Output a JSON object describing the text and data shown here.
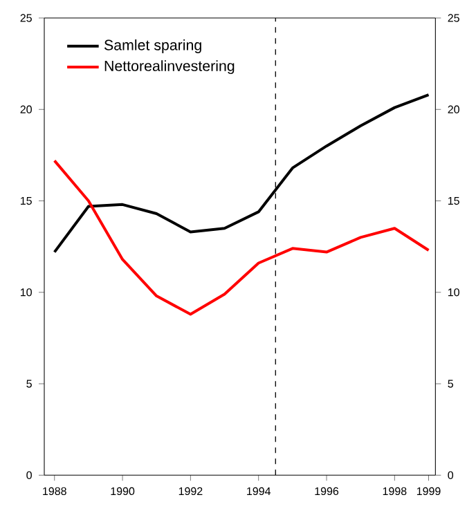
{
  "chart_data": {
    "type": "line",
    "x": [
      1988,
      1989,
      1990,
      1991,
      1992,
      1993,
      1994,
      1995,
      1996,
      1997,
      1998,
      1999
    ],
    "series": [
      {
        "name": "Samlet sparing",
        "color": "#000000",
        "values": [
          12.2,
          14.7,
          14.8,
          14.3,
          13.3,
          13.5,
          14.4,
          16.8,
          18.0,
          19.1,
          20.1,
          20.8
        ]
      },
      {
        "name": "Nettorealinvestering",
        "color": "#ff0000",
        "values": [
          17.2,
          15.0,
          11.8,
          9.8,
          8.8,
          9.9,
          11.6,
          12.4,
          12.2,
          13.0,
          13.5,
          12.3
        ]
      }
    ],
    "xlim": [
      1987.7,
      1999.2
    ],
    "xticks": [
      1988,
      1990,
      1992,
      1994,
      1996,
      1998,
      1999
    ],
    "ylim": [
      0,
      25
    ],
    "yticks": [
      0,
      5,
      10,
      15,
      20,
      25
    ],
    "y2lim": [
      0,
      25
    ],
    "y2ticks": [
      0,
      5,
      10,
      15,
      20,
      25
    ],
    "ref_lines": [
      {
        "axis": "x",
        "value": 1994.5,
        "color": "#000000",
        "line_style": "dashed"
      }
    ],
    "legend": "top left",
    "grid": false,
    "marker": "none",
    "line_style": "solid"
  }
}
